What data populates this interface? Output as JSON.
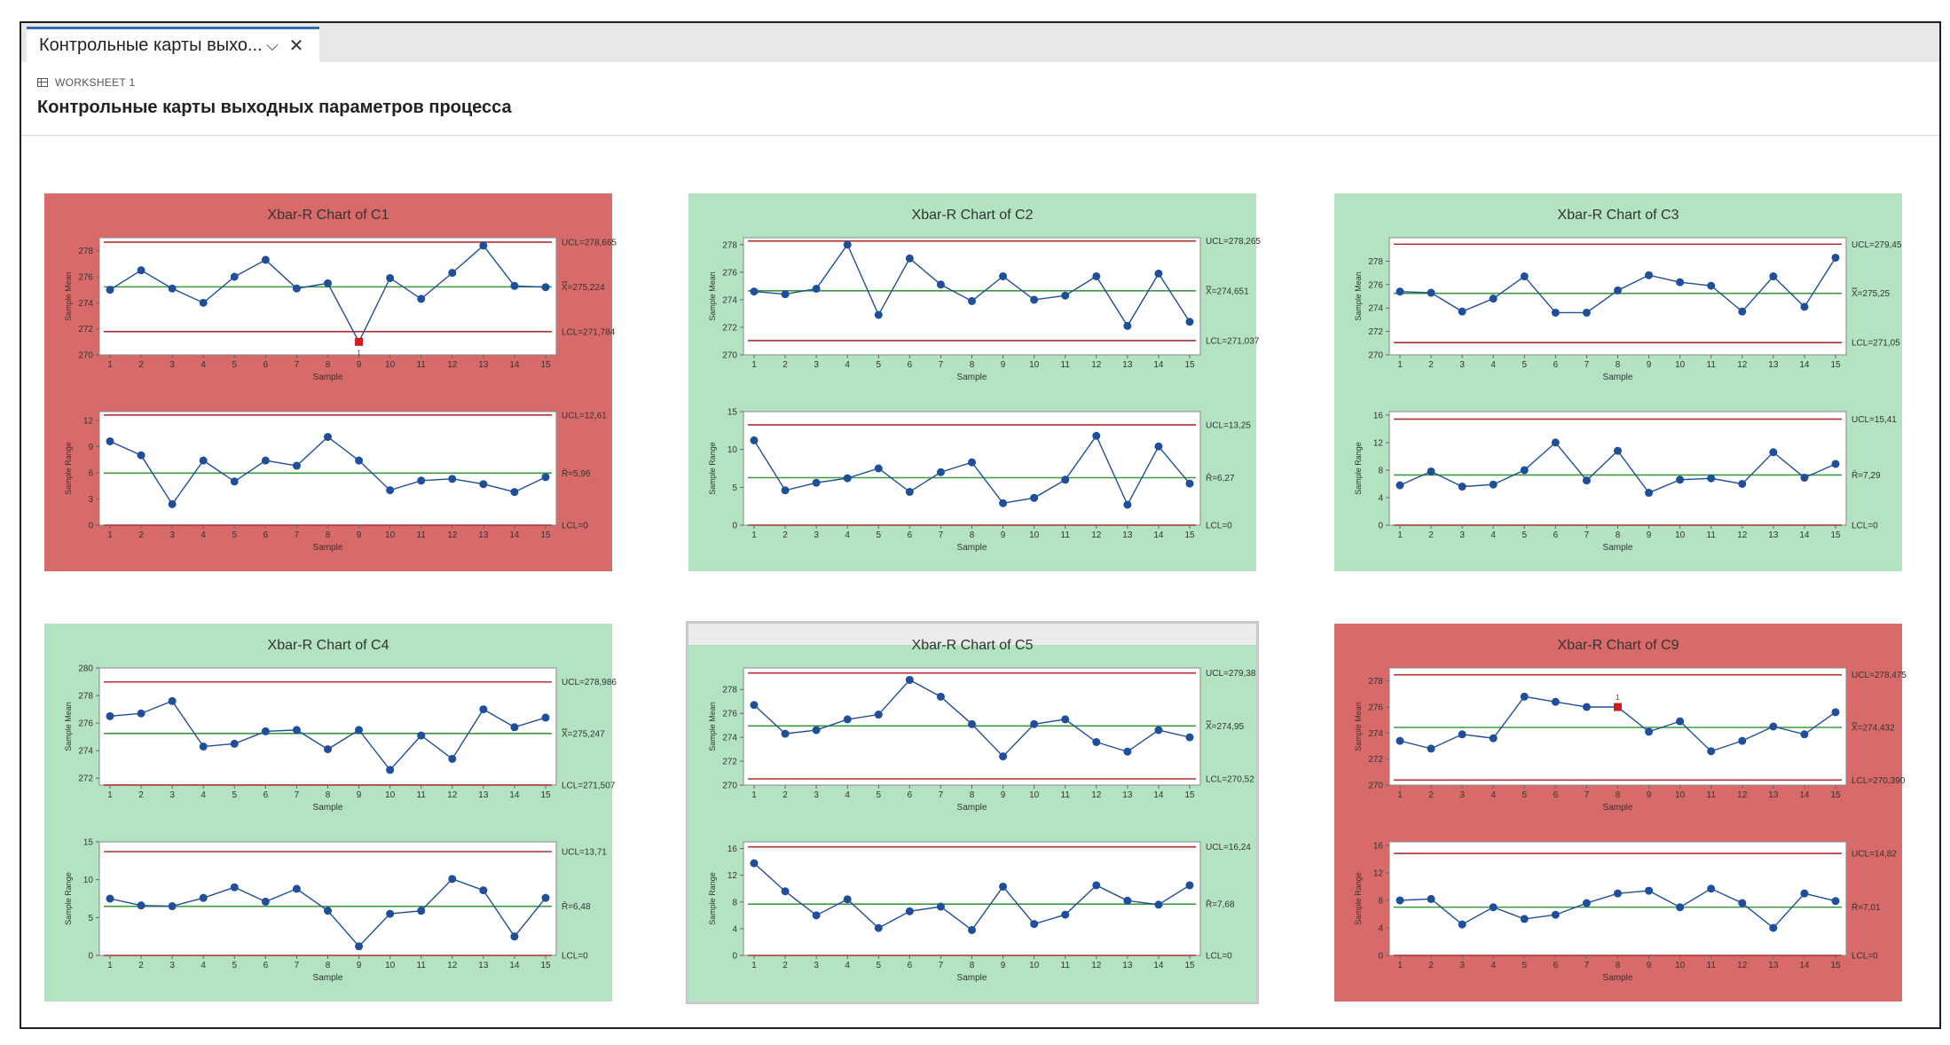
{
  "window": {
    "tab_title": "Контрольные карты выхо...",
    "chevron_icon": "chevron-down-icon",
    "close_icon": "close-icon",
    "worksheet_icon": "grid-icon",
    "worksheet_label": "WORKSHEET 1",
    "page_title": "Контрольные карты выходных параметров процесса"
  },
  "colors": {
    "ok_panel": "#b4e3c2",
    "alarm_panel": "#d86a6a",
    "series": "#1f4e9a",
    "center_line": "#3e9a3e",
    "limit_line": "#b23030",
    "out_of_control_point": "#d01c1c"
  },
  "chart_data": [
    {
      "type": "line",
      "title": "Xbar-R Chart of C1",
      "status": "out-of-control",
      "xbar": {
        "ylabel": "Sample Mean",
        "xlabel": "Sample",
        "x": [
          1,
          2,
          3,
          4,
          5,
          6,
          7,
          8,
          9,
          10,
          11,
          12,
          13,
          14,
          15
        ],
        "values": [
          275.0,
          276.5,
          275.1,
          274.0,
          276.0,
          277.3,
          275.1,
          275.5,
          271.0,
          275.9,
          274.3,
          276.3,
          278.4,
          275.3,
          275.2
        ],
        "ylim": [
          270,
          279
        ],
        "yticks": [
          270,
          272,
          274,
          276,
          278
        ],
        "out_of_control": [
          9
        ],
        "ucl": 278.665,
        "center": 275.224,
        "lcl": 271.784,
        "ucl_label": "UCL=278,665",
        "center_label": "X̿=275,224",
        "lcl_label": "LCL=271,784"
      },
      "range": {
        "ylabel": "Sample Range",
        "xlabel": "Sample",
        "x": [
          1,
          2,
          3,
          4,
          5,
          6,
          7,
          8,
          9,
          10,
          11,
          12,
          13,
          14,
          15
        ],
        "values": [
          9.6,
          8.0,
          2.4,
          7.4,
          5.0,
          7.4,
          6.8,
          10.1,
          7.4,
          4.0,
          5.1,
          5.3,
          4.7,
          3.8,
          5.5
        ],
        "ylim": [
          0,
          13
        ],
        "yticks": [
          0,
          3,
          6,
          9,
          12
        ],
        "ucl": 12.61,
        "center": 5.96,
        "lcl": 0,
        "ucl_label": "UCL=12,61",
        "center_label": "R̄=5,96",
        "lcl_label": "LCL=0"
      }
    },
    {
      "type": "line",
      "title": "Xbar-R Chart of C2",
      "status": "in-control",
      "xbar": {
        "ylabel": "Sample Mean",
        "xlabel": "Sample",
        "x": [
          1,
          2,
          3,
          4,
          5,
          6,
          7,
          8,
          9,
          10,
          11,
          12,
          13,
          14,
          15
        ],
        "values": [
          274.6,
          274.4,
          274.8,
          278.0,
          272.9,
          277.0,
          275.1,
          273.9,
          275.7,
          274.0,
          274.3,
          275.7,
          272.1,
          275.9,
          272.4
        ],
        "ylim": [
          270,
          278.5
        ],
        "yticks": [
          270,
          272,
          274,
          276,
          278
        ],
        "out_of_control": [],
        "ucl": 278.265,
        "center": 274.651,
        "lcl": 271.037,
        "ucl_label": "UCL=278,265",
        "center_label": "X̿=274,651",
        "lcl_label": "LCL=271,037"
      },
      "range": {
        "ylabel": "Sample Range",
        "xlabel": "Sample",
        "x": [
          1,
          2,
          3,
          4,
          5,
          6,
          7,
          8,
          9,
          10,
          11,
          12,
          13,
          14,
          15
        ],
        "values": [
          11.2,
          4.6,
          5.6,
          6.2,
          7.5,
          4.4,
          7.0,
          8.3,
          2.9,
          3.6,
          6.0,
          11.8,
          2.7,
          10.4,
          5.5
        ],
        "ylim": [
          0,
          15
        ],
        "yticks": [
          0,
          5,
          10,
          15
        ],
        "ucl": 13.25,
        "center": 6.27,
        "lcl": 0,
        "ucl_label": "UCL=13,25",
        "center_label": "R̄=6,27",
        "lcl_label": "LCL=0"
      }
    },
    {
      "type": "line",
      "title": "Xbar-R Chart of C3",
      "status": "in-control",
      "xbar": {
        "ylabel": "Sample Mean",
        "xlabel": "Sample",
        "x": [
          1,
          2,
          3,
          4,
          5,
          6,
          7,
          8,
          9,
          10,
          11,
          12,
          13,
          14,
          15
        ],
        "values": [
          275.4,
          275.3,
          273.7,
          274.8,
          276.7,
          273.6,
          273.6,
          275.5,
          276.8,
          276.2,
          275.9,
          273.7,
          276.7,
          274.1,
          278.3
        ],
        "ylim": [
          270,
          280
        ],
        "yticks": [
          270,
          272,
          274,
          276,
          278
        ],
        "out_of_control": [],
        "ucl": 279.45,
        "center": 275.25,
        "lcl": 271.05,
        "ucl_label": "UCL=279,45",
        "center_label": "X̿=275,25",
        "lcl_label": "LCL=271,05"
      },
      "range": {
        "ylabel": "Sample Range",
        "xlabel": "Sample",
        "x": [
          1,
          2,
          3,
          4,
          5,
          6,
          7,
          8,
          9,
          10,
          11,
          12,
          13,
          14,
          15
        ],
        "values": [
          5.8,
          7.8,
          5.6,
          5.9,
          8.0,
          12.0,
          6.5,
          10.8,
          4.7,
          6.6,
          6.8,
          6.0,
          10.6,
          6.9,
          8.9
        ],
        "ylim": [
          0,
          16.5
        ],
        "yticks": [
          0,
          4,
          8,
          12,
          16
        ],
        "ucl": 15.41,
        "center": 7.29,
        "lcl": 0,
        "ucl_label": "UCL=15,41",
        "center_label": "R̄=7,29",
        "lcl_label": "LCL=0"
      }
    },
    {
      "type": "line",
      "title": "Xbar-R Chart of C4",
      "status": "in-control",
      "xbar": {
        "ylabel": "Sample Mean",
        "xlabel": "Sample",
        "x": [
          1,
          2,
          3,
          4,
          5,
          6,
          7,
          8,
          9,
          10,
          11,
          12,
          13,
          14,
          15
        ],
        "values": [
          276.5,
          276.7,
          277.6,
          274.3,
          274.5,
          275.4,
          275.5,
          274.1,
          275.5,
          272.6,
          275.1,
          273.4,
          277.0,
          275.7,
          276.4
        ],
        "ylim": [
          271.5,
          280
        ],
        "yticks": [
          272,
          274,
          276,
          278,
          280
        ],
        "out_of_control": [],
        "ucl": 278.986,
        "center": 275.247,
        "lcl": 271.507,
        "ucl_label": "UCL=278,986",
        "center_label": "X̿=275,247",
        "lcl_label": "LCL=271,507"
      },
      "range": {
        "ylabel": "Sample Range",
        "xlabel": "Sample",
        "x": [
          1,
          2,
          3,
          4,
          5,
          6,
          7,
          8,
          9,
          10,
          11,
          12,
          13,
          14,
          15
        ],
        "values": [
          7.5,
          6.6,
          6.5,
          7.6,
          9.0,
          7.1,
          8.8,
          5.9,
          1.2,
          5.5,
          5.9,
          10.1,
          8.6,
          2.5,
          7.6
        ],
        "ylim": [
          0,
          15
        ],
        "yticks": [
          0,
          5,
          10,
          15
        ],
        "ucl": 13.71,
        "center": 6.48,
        "lcl": 0,
        "ucl_label": "UCL=13,71",
        "center_label": "R̄=6,48",
        "lcl_label": "LCL=0"
      }
    },
    {
      "type": "line",
      "title": "Xbar-R Chart of C5",
      "status": "in-control",
      "selected": true,
      "xbar": {
        "ylabel": "Sample Mean",
        "xlabel": "Sample",
        "x": [
          1,
          2,
          3,
          4,
          5,
          6,
          7,
          8,
          9,
          10,
          11,
          12,
          13,
          14,
          15
        ],
        "values": [
          276.7,
          274.3,
          274.6,
          275.5,
          275.9,
          278.8,
          277.4,
          275.1,
          272.4,
          275.1,
          275.5,
          273.6,
          272.8,
          274.6,
          274.0
        ],
        "ylim": [
          270,
          279.8
        ],
        "yticks": [
          270,
          272,
          274,
          276,
          278
        ],
        "out_of_control": [],
        "ucl": 279.38,
        "center": 274.95,
        "lcl": 270.52,
        "ucl_label": "UCL=279,38",
        "center_label": "X̿=274,95",
        "lcl_label": "LCL=270,52"
      },
      "range": {
        "ylabel": "Sample Range",
        "xlabel": "Sample",
        "x": [
          1,
          2,
          3,
          4,
          5,
          6,
          7,
          8,
          9,
          10,
          11,
          12,
          13,
          14,
          15
        ],
        "values": [
          13.8,
          9.6,
          6.0,
          8.4,
          4.1,
          6.6,
          7.3,
          3.8,
          10.3,
          4.7,
          6.1,
          10.5,
          8.2,
          7.6,
          10.5
        ],
        "ylim": [
          0,
          17
        ],
        "yticks": [
          0,
          4,
          8,
          12,
          16
        ],
        "ucl": 16.24,
        "center": 7.68,
        "lcl": 0,
        "ucl_label": "UCL=16,24",
        "center_label": "R̄=7,68",
        "lcl_label": "LCL=0"
      }
    },
    {
      "type": "line",
      "title": "Xbar-R Chart of C9",
      "status": "out-of-control",
      "xbar": {
        "ylabel": "Sample Mean",
        "xlabel": "Sample",
        "x": [
          1,
          2,
          3,
          4,
          5,
          6,
          7,
          8,
          9,
          10,
          11,
          12,
          13,
          14,
          15
        ],
        "values": [
          273.4,
          272.8,
          273.9,
          273.6,
          276.8,
          276.4,
          276.0,
          276.0,
          274.1,
          274.9,
          272.6,
          273.4,
          274.5,
          273.9,
          275.6
        ],
        "ylim": [
          270,
          279
        ],
        "yticks": [
          270,
          272,
          274,
          276,
          278
        ],
        "out_of_control": [
          8
        ],
        "ucl": 278.475,
        "center": 274.432,
        "lcl": 270.39,
        "ucl_label": "UCL=278,475",
        "center_label": "X̿=274,432",
        "lcl_label": "LCL=270,390"
      },
      "range": {
        "ylabel": "Sample Range",
        "xlabel": "Sample",
        "x": [
          1,
          2,
          3,
          4,
          5,
          6,
          7,
          8,
          9,
          10,
          11,
          12,
          13,
          14,
          15
        ],
        "values": [
          8.0,
          8.2,
          4.5,
          7.0,
          5.3,
          5.9,
          7.6,
          9.0,
          9.4,
          7.0,
          9.7,
          7.6,
          4.0,
          9.0,
          7.9
        ],
        "ylim": [
          0,
          16.5
        ],
        "yticks": [
          0,
          4,
          8,
          12,
          16
        ],
        "ucl": 14.82,
        "center": 7.01,
        "lcl": 0,
        "ucl_label": "UCL=14,82",
        "center_label": "R̄=7,01",
        "lcl_label": "LCL=0"
      }
    }
  ]
}
